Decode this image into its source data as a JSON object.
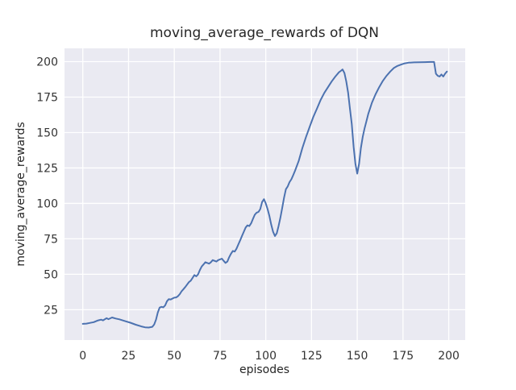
{
  "figure": {
    "background": "#ffffff"
  },
  "chart_data": {
    "type": "line",
    "title": "moving_average_rewards of DQN",
    "xlabel": "episodes",
    "ylabel": "moving_average_rewards",
    "xlim": [
      -10,
      209
    ],
    "ylim": [
      3.6,
      209.4
    ],
    "xticks": [
      0,
      25,
      50,
      75,
      100,
      125,
      150,
      175,
      200
    ],
    "yticks": [
      25,
      50,
      75,
      100,
      125,
      150,
      175,
      200
    ],
    "grid": true,
    "legend_position": "none",
    "axes_background": "#eaeaf2",
    "grid_color": "#ffffff",
    "line_color": "#4c72b0",
    "text_color": "#262626",
    "series": [
      {
        "name": "moving_average_rewards",
        "points": [
          [
            0,
            15
          ],
          [
            2,
            15.2
          ],
          [
            4,
            15.7
          ],
          [
            6,
            16.2
          ],
          [
            8,
            17.3
          ],
          [
            10,
            18
          ],
          [
            11,
            17.5
          ],
          [
            13,
            19
          ],
          [
            14,
            18.3
          ],
          [
            16,
            19.5
          ],
          [
            18,
            18.8
          ],
          [
            20,
            18.2
          ],
          [
            23,
            17
          ],
          [
            26,
            15.8
          ],
          [
            29,
            14.4
          ],
          [
            32,
            13.2
          ],
          [
            34,
            12.6
          ],
          [
            36,
            12.4
          ],
          [
            38,
            12.9
          ],
          [
            39,
            14.5
          ],
          [
            40,
            18
          ],
          [
            41,
            23
          ],
          [
            42,
            26.5
          ],
          [
            43,
            27
          ],
          [
            44,
            26.7
          ],
          [
            45,
            28
          ],
          [
            46,
            31
          ],
          [
            47,
            32.5
          ],
          [
            48,
            32.2
          ],
          [
            50,
            33.5
          ],
          [
            51,
            33.7
          ],
          [
            52,
            34.5
          ],
          [
            53,
            36
          ],
          [
            54,
            38
          ],
          [
            55,
            39.5
          ],
          [
            56,
            41
          ],
          [
            58,
            44.5
          ],
          [
            59,
            45.5
          ],
          [
            60,
            47.5
          ],
          [
            61,
            49.5
          ],
          [
            62,
            48.5
          ],
          [
            63,
            50
          ],
          [
            64,
            53
          ],
          [
            65,
            55.5
          ],
          [
            66,
            57
          ],
          [
            67,
            58.5
          ],
          [
            68,
            58
          ],
          [
            69,
            57.5
          ],
          [
            70,
            58.5
          ],
          [
            71,
            60
          ],
          [
            72,
            59.5
          ],
          [
            73,
            59
          ],
          [
            74,
            60
          ],
          [
            75,
            60.5
          ],
          [
            76,
            61
          ],
          [
            77,
            59.5
          ],
          [
            78,
            58
          ],
          [
            79,
            59
          ],
          [
            80,
            62
          ],
          [
            81,
            64.5
          ],
          [
            82,
            66.5
          ],
          [
            83,
            66
          ],
          [
            84,
            68
          ],
          [
            85,
            71
          ],
          [
            86,
            74
          ],
          [
            87,
            77
          ],
          [
            88,
            80
          ],
          [
            89,
            83
          ],
          [
            90,
            84.5
          ],
          [
            91,
            84
          ],
          [
            92,
            86
          ],
          [
            93,
            89
          ],
          [
            94,
            92
          ],
          [
            95,
            93.5
          ],
          [
            96,
            94
          ],
          [
            97,
            96
          ],
          [
            98,
            101
          ],
          [
            99,
            103
          ],
          [
            100,
            100
          ],
          [
            101,
            96
          ],
          [
            102,
            91
          ],
          [
            103,
            85
          ],
          [
            104,
            80
          ],
          [
            105,
            77
          ],
          [
            106,
            79
          ],
          [
            107,
            84
          ],
          [
            108,
            90
          ],
          [
            109,
            97
          ],
          [
            110,
            104
          ],
          [
            111,
            110
          ],
          [
            112,
            112
          ],
          [
            113,
            115
          ],
          [
            114,
            117
          ],
          [
            115,
            120
          ],
          [
            116,
            123
          ],
          [
            118,
            130
          ],
          [
            120,
            139
          ],
          [
            122,
            147
          ],
          [
            124,
            154
          ],
          [
            126,
            161
          ],
          [
            128,
            167
          ],
          [
            130,
            173
          ],
          [
            132,
            178
          ],
          [
            134,
            182
          ],
          [
            136,
            186
          ],
          [
            138,
            189.5
          ],
          [
            140,
            192.5
          ],
          [
            141,
            193.5
          ],
          [
            142,
            194.5
          ],
          [
            143,
            192
          ],
          [
            144,
            186
          ],
          [
            145,
            178
          ],
          [
            146,
            167
          ],
          [
            147,
            156
          ],
          [
            148,
            140
          ],
          [
            149,
            128
          ],
          [
            150,
            121
          ],
          [
            151,
            128
          ],
          [
            152,
            139
          ],
          [
            153,
            147
          ],
          [
            154,
            153
          ],
          [
            155,
            158
          ],
          [
            156,
            163
          ],
          [
            157,
            167
          ],
          [
            158,
            171
          ],
          [
            160,
            177
          ],
          [
            162,
            182
          ],
          [
            164,
            186.5
          ],
          [
            166,
            190
          ],
          [
            168,
            193
          ],
          [
            170,
            195.5
          ],
          [
            172,
            197
          ],
          [
            174,
            198
          ],
          [
            176,
            198.8
          ],
          [
            178,
            199.3
          ],
          [
            181,
            199.5
          ],
          [
            184,
            199.6
          ],
          [
            187,
            199.7
          ],
          [
            190,
            199.8
          ],
          [
            192,
            199.8
          ],
          [
            193,
            191.5
          ],
          [
            194,
            190
          ],
          [
            195,
            189.5
          ],
          [
            196,
            191
          ],
          [
            197,
            189.5
          ],
          [
            198,
            191.5
          ],
          [
            199,
            193
          ]
        ]
      }
    ]
  }
}
